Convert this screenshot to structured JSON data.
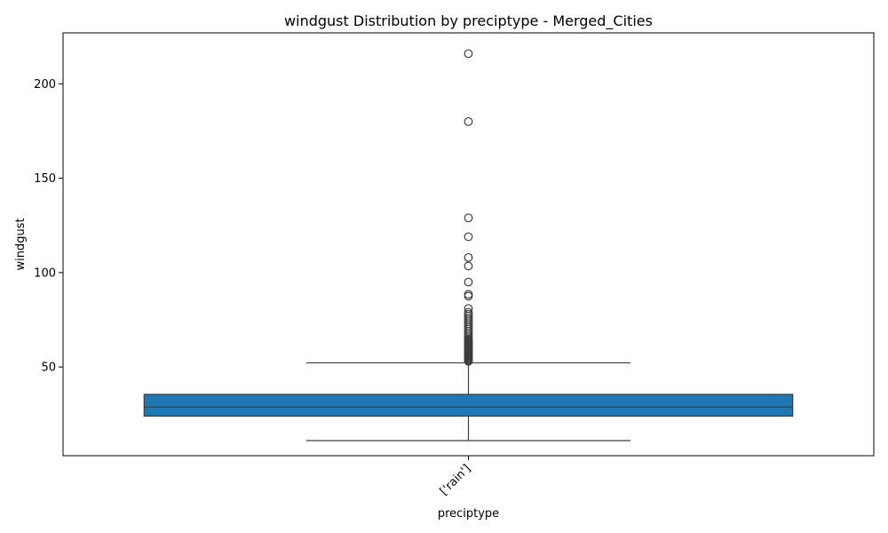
{
  "chart_data": {
    "type": "box",
    "title": "windgust Distribution by preciptype - Merged_Cities",
    "xlabel": "preciptype",
    "ylabel": "windgust",
    "ylim": [
      3,
      227
    ],
    "yticks": [
      50,
      100,
      150,
      200
    ],
    "categories": [
      "['rain']"
    ],
    "boxes": [
      {
        "category": "['rain']",
        "whisker_low": 11,
        "q1": 24,
        "median": 28.8,
        "q3": 35.5,
        "whisker_high": 52.2,
        "outliers": [
          53,
          53.5,
          54,
          54.5,
          55,
          55.5,
          56,
          56.5,
          57,
          57.5,
          58,
          58.5,
          59,
          59.5,
          60,
          60.5,
          61,
          61.5,
          62,
          62.5,
          63,
          63.5,
          64,
          64.5,
          65,
          66,
          67,
          68,
          69,
          70,
          71,
          72,
          73,
          74,
          75,
          76,
          77,
          78,
          79,
          81,
          87.5,
          88.5,
          95,
          103.5,
          108,
          119,
          129,
          180,
          216
        ]
      }
    ],
    "box_color": "#1f77b4",
    "grid": false,
    "legend": false
  }
}
